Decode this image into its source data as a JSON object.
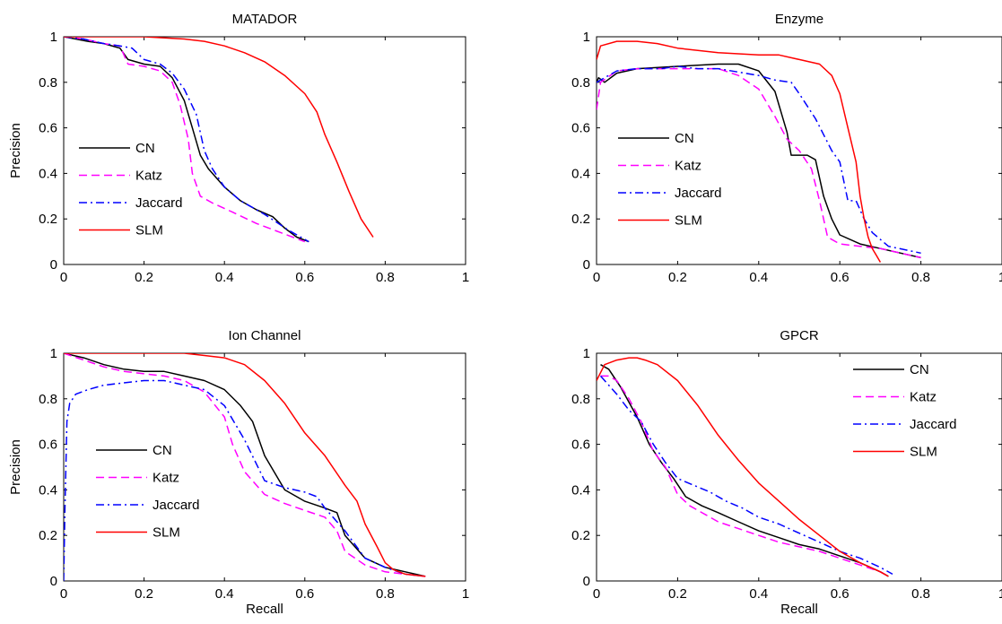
{
  "figure": {
    "background": "#ffffff"
  },
  "legend_order": [
    "CN",
    "Katz",
    "Jaccard",
    "SLM"
  ],
  "series_styles": {
    "CN": {
      "color": "#000000",
      "dash": ""
    },
    "Katz": {
      "color": "#ff00ff",
      "dash": "9,5"
    },
    "Jaccard": {
      "color": "#0000ff",
      "dash": "9,4,2,4"
    },
    "SLM": {
      "color": "#ff0000",
      "dash": ""
    }
  },
  "chart_data": [
    {
      "type": "line",
      "title": "MATADOR",
      "xlabel": "",
      "ylabel": "Precision",
      "xlim": [
        0,
        1
      ],
      "ylim": [
        0,
        1
      ],
      "xticks": [
        "0",
        "0.2",
        "0.4",
        "0.8",
        "0.6",
        "1"
      ],
      "xtick_values": [
        0,
        0.2,
        0.4,
        0.8,
        0.6,
        1
      ],
      "yticks": [
        "0",
        "0.2",
        "0.4",
        "0.6",
        "0.8",
        "1"
      ],
      "ytick_values": [
        0,
        0.2,
        0.4,
        0.6,
        0.8,
        1
      ],
      "grid": false,
      "legend": "left-middle",
      "series": [
        {
          "name": "CN",
          "x": [
            0,
            0.03,
            0.06,
            0.1,
            0.14,
            0.16,
            0.2,
            0.24,
            0.27,
            0.3,
            0.32,
            0.34,
            0.36,
            0.4,
            0.44,
            0.48,
            0.52,
            0.55,
            0.58,
            0.61
          ],
          "y": [
            1,
            0.99,
            0.98,
            0.97,
            0.95,
            0.9,
            0.88,
            0.87,
            0.82,
            0.72,
            0.6,
            0.48,
            0.42,
            0.34,
            0.28,
            0.24,
            0.21,
            0.16,
            0.12,
            0.1
          ]
        },
        {
          "name": "Katz",
          "x": [
            0,
            0.05,
            0.1,
            0.14,
            0.16,
            0.2,
            0.24,
            0.27,
            0.29,
            0.31,
            0.32,
            0.34,
            0.37,
            0.42,
            0.48,
            0.54,
            0.6
          ],
          "y": [
            1,
            0.99,
            0.97,
            0.96,
            0.88,
            0.87,
            0.85,
            0.8,
            0.7,
            0.55,
            0.4,
            0.3,
            0.27,
            0.23,
            0.18,
            0.14,
            0.1
          ]
        },
        {
          "name": "Jaccard",
          "x": [
            0,
            0.05,
            0.1,
            0.14,
            0.17,
            0.2,
            0.24,
            0.27,
            0.3,
            0.33,
            0.35,
            0.37,
            0.4,
            0.44,
            0.5,
            0.56,
            0.61
          ],
          "y": [
            1,
            0.99,
            0.97,
            0.96,
            0.95,
            0.9,
            0.88,
            0.84,
            0.77,
            0.66,
            0.5,
            0.42,
            0.34,
            0.28,
            0.22,
            0.15,
            0.1
          ]
        },
        {
          "name": "SLM",
          "x": [
            0,
            0.1,
            0.2,
            0.3,
            0.35,
            0.4,
            0.45,
            0.5,
            0.55,
            0.6,
            0.63,
            0.65,
            0.68,
            0.71,
            0.74,
            0.77
          ],
          "y": [
            1,
            1,
            1,
            0.99,
            0.98,
            0.96,
            0.93,
            0.89,
            0.83,
            0.75,
            0.67,
            0.57,
            0.45,
            0.32,
            0.2,
            0.12
          ]
        }
      ]
    },
    {
      "type": "line",
      "title": "Enzyme",
      "xlabel": "",
      "ylabel": "",
      "xlim": [
        0,
        1
      ],
      "ylim": [
        0,
        1
      ],
      "xticks": [
        "0",
        "0.2",
        "0.4",
        "0.6",
        "0.8",
        "1"
      ],
      "xtick_values": [
        0,
        0.2,
        0.4,
        0.6,
        0.8,
        1
      ],
      "yticks": [
        "0",
        "0.2",
        "0.4",
        "0.6",
        "0.8",
        "1"
      ],
      "ytick_values": [
        0,
        0.2,
        0.4,
        0.6,
        0.8,
        1
      ],
      "grid": false,
      "legend": "left-middle",
      "series": [
        {
          "name": "CN",
          "x": [
            0,
            0.005,
            0.02,
            0.05,
            0.1,
            0.2,
            0.3,
            0.35,
            0.4,
            0.44,
            0.47,
            0.48,
            0.49,
            0.5,
            0.52,
            0.54,
            0.56,
            0.58,
            0.6,
            0.65,
            0.7,
            0.75,
            0.8
          ],
          "y": [
            0.8,
            0.82,
            0.8,
            0.84,
            0.86,
            0.87,
            0.88,
            0.88,
            0.85,
            0.76,
            0.58,
            0.48,
            0.48,
            0.48,
            0.48,
            0.46,
            0.3,
            0.2,
            0.13,
            0.09,
            0.07,
            0.05,
            0.03
          ]
        },
        {
          "name": "Katz",
          "x": [
            0,
            0.01,
            0.05,
            0.1,
            0.2,
            0.3,
            0.35,
            0.4,
            0.44,
            0.47,
            0.5,
            0.53,
            0.55,
            0.57,
            0.6,
            0.65,
            0.7,
            0.75,
            0.8
          ],
          "y": [
            0.68,
            0.8,
            0.85,
            0.86,
            0.86,
            0.86,
            0.83,
            0.77,
            0.65,
            0.55,
            0.5,
            0.42,
            0.28,
            0.12,
            0.09,
            0.08,
            0.07,
            0.05,
            0.03
          ]
        },
        {
          "name": "Jaccard",
          "x": [
            0,
            0.02,
            0.05,
            0.1,
            0.16,
            0.2,
            0.25,
            0.3,
            0.4,
            0.44,
            0.48,
            0.5,
            0.54,
            0.58,
            0.6,
            0.62,
            0.64,
            0.66,
            0.68,
            0.72,
            0.8
          ],
          "y": [
            0.8,
            0.82,
            0.85,
            0.86,
            0.86,
            0.87,
            0.86,
            0.86,
            0.83,
            0.81,
            0.8,
            0.75,
            0.64,
            0.5,
            0.45,
            0.28,
            0.28,
            0.2,
            0.14,
            0.08,
            0.05
          ]
        },
        {
          "name": "SLM",
          "x": [
            0,
            0.01,
            0.05,
            0.1,
            0.15,
            0.2,
            0.3,
            0.4,
            0.45,
            0.5,
            0.55,
            0.58,
            0.6,
            0.62,
            0.64,
            0.65,
            0.66,
            0.67,
            0.68,
            0.69,
            0.7
          ],
          "y": [
            0.9,
            0.96,
            0.98,
            0.98,
            0.97,
            0.95,
            0.93,
            0.92,
            0.92,
            0.9,
            0.88,
            0.83,
            0.75,
            0.6,
            0.45,
            0.3,
            0.2,
            0.12,
            0.07,
            0.04,
            0.01
          ]
        }
      ]
    },
    {
      "type": "line",
      "title": "Ion Channel",
      "xlabel": "Recall",
      "ylabel": "Precision",
      "xlim": [
        0,
        1
      ],
      "ylim": [
        0,
        1
      ],
      "xticks": [
        "0",
        "0.2",
        "0.4",
        "0.6",
        "0.8",
        "1"
      ],
      "xtick_values": [
        0,
        0.2,
        0.4,
        0.6,
        0.8,
        1
      ],
      "yticks": [
        "0",
        "0.2",
        "0.4",
        "0.6",
        "0.8",
        "1"
      ],
      "ytick_values": [
        0,
        0.2,
        0.4,
        0.6,
        0.8,
        1
      ],
      "grid": false,
      "legend": "left-middle",
      "series": [
        {
          "name": "CN",
          "x": [
            0,
            0.05,
            0.1,
            0.15,
            0.2,
            0.25,
            0.3,
            0.35,
            0.4,
            0.44,
            0.47,
            0.5,
            0.55,
            0.6,
            0.65,
            0.68,
            0.7,
            0.75,
            0.8,
            0.85,
            0.9
          ],
          "y": [
            1,
            0.98,
            0.95,
            0.93,
            0.92,
            0.92,
            0.9,
            0.88,
            0.84,
            0.77,
            0.7,
            0.55,
            0.4,
            0.35,
            0.32,
            0.3,
            0.2,
            0.1,
            0.06,
            0.04,
            0.02
          ]
        },
        {
          "name": "Katz",
          "x": [
            0,
            0.05,
            0.1,
            0.15,
            0.2,
            0.25,
            0.3,
            0.35,
            0.4,
            0.42,
            0.45,
            0.5,
            0.55,
            0.6,
            0.65,
            0.68,
            0.7,
            0.75,
            0.8,
            0.85,
            0.9
          ],
          "y": [
            1,
            0.97,
            0.94,
            0.92,
            0.91,
            0.9,
            0.88,
            0.83,
            0.72,
            0.6,
            0.48,
            0.38,
            0.34,
            0.31,
            0.28,
            0.22,
            0.13,
            0.07,
            0.04,
            0.03,
            0.02
          ]
        },
        {
          "name": "Jaccard",
          "x": [
            0,
            0.003,
            0.008,
            0.015,
            0.03,
            0.06,
            0.1,
            0.15,
            0.2,
            0.25,
            0.3,
            0.35,
            0.4,
            0.45,
            0.5,
            0.55,
            0.6,
            0.63,
            0.65,
            0.7,
            0.75,
            0.8,
            0.85,
            0.9
          ],
          "y": [
            0,
            0.3,
            0.7,
            0.78,
            0.82,
            0.84,
            0.86,
            0.87,
            0.88,
            0.88,
            0.86,
            0.84,
            0.77,
            0.62,
            0.44,
            0.41,
            0.39,
            0.37,
            0.32,
            0.22,
            0.1,
            0.06,
            0.03,
            0.02
          ]
        },
        {
          "name": "SLM",
          "x": [
            0,
            0.1,
            0.2,
            0.3,
            0.35,
            0.4,
            0.45,
            0.5,
            0.55,
            0.6,
            0.65,
            0.7,
            0.73,
            0.75,
            0.78,
            0.8,
            0.82,
            0.85,
            0.9
          ],
          "y": [
            1,
            1,
            1,
            1,
            0.99,
            0.98,
            0.95,
            0.88,
            0.78,
            0.65,
            0.55,
            0.42,
            0.35,
            0.25,
            0.15,
            0.08,
            0.05,
            0.03,
            0.02
          ]
        }
      ]
    },
    {
      "type": "line",
      "title": "GPCR",
      "xlabel": "Recall",
      "ylabel": "",
      "xlim": [
        0,
        1
      ],
      "ylim": [
        0,
        1
      ],
      "xticks": [
        "0",
        "0.2",
        "0.4",
        "0.6",
        "0.8",
        "1"
      ],
      "xtick_values": [
        0,
        0.2,
        0.4,
        0.6,
        0.8,
        1
      ],
      "yticks": [
        "0",
        "0.2",
        "0.4",
        "0.6",
        "0.8",
        "1"
      ],
      "ytick_values": [
        0,
        0.2,
        0.4,
        0.6,
        0.8,
        1
      ],
      "grid": false,
      "legend": "top-right",
      "series": [
        {
          "name": "CN",
          "x": [
            0.01,
            0.03,
            0.06,
            0.1,
            0.13,
            0.16,
            0.19,
            0.22,
            0.26,
            0.3,
            0.35,
            0.4,
            0.45,
            0.5,
            0.55,
            0.6,
            0.65,
            0.7,
            0.72
          ],
          "y": [
            0.95,
            0.93,
            0.85,
            0.72,
            0.6,
            0.52,
            0.45,
            0.37,
            0.33,
            0.3,
            0.26,
            0.22,
            0.19,
            0.16,
            0.14,
            0.11,
            0.08,
            0.04,
            0.02
          ]
        },
        {
          "name": "Katz",
          "x": [
            0.01,
            0.03,
            0.05,
            0.08,
            0.11,
            0.14,
            0.17,
            0.2,
            0.23,
            0.27,
            0.3,
            0.35,
            0.4,
            0.45,
            0.5,
            0.55,
            0.6,
            0.65,
            0.7,
            0.72
          ],
          "y": [
            0.9,
            0.9,
            0.88,
            0.8,
            0.7,
            0.57,
            0.5,
            0.38,
            0.33,
            0.29,
            0.26,
            0.23,
            0.2,
            0.17,
            0.15,
            0.13,
            0.1,
            0.07,
            0.04,
            0.02
          ]
        },
        {
          "name": "Jaccard",
          "x": [
            0.01,
            0.03,
            0.05,
            0.08,
            0.11,
            0.14,
            0.17,
            0.2,
            0.24,
            0.28,
            0.32,
            0.36,
            0.4,
            0.45,
            0.5,
            0.55,
            0.6,
            0.65,
            0.7,
            0.73
          ],
          "y": [
            0.9,
            0.86,
            0.82,
            0.75,
            0.7,
            0.6,
            0.52,
            0.45,
            0.42,
            0.39,
            0.35,
            0.32,
            0.28,
            0.25,
            0.21,
            0.17,
            0.13,
            0.1,
            0.06,
            0.03
          ]
        },
        {
          "name": "SLM",
          "x": [
            0,
            0.02,
            0.05,
            0.08,
            0.1,
            0.12,
            0.15,
            0.2,
            0.25,
            0.3,
            0.35,
            0.4,
            0.45,
            0.5,
            0.55,
            0.6,
            0.65,
            0.7,
            0.72
          ],
          "y": [
            0.88,
            0.95,
            0.97,
            0.98,
            0.98,
            0.97,
            0.95,
            0.88,
            0.77,
            0.64,
            0.53,
            0.43,
            0.35,
            0.27,
            0.2,
            0.13,
            0.08,
            0.04,
            0.02
          ]
        }
      ]
    }
  ]
}
